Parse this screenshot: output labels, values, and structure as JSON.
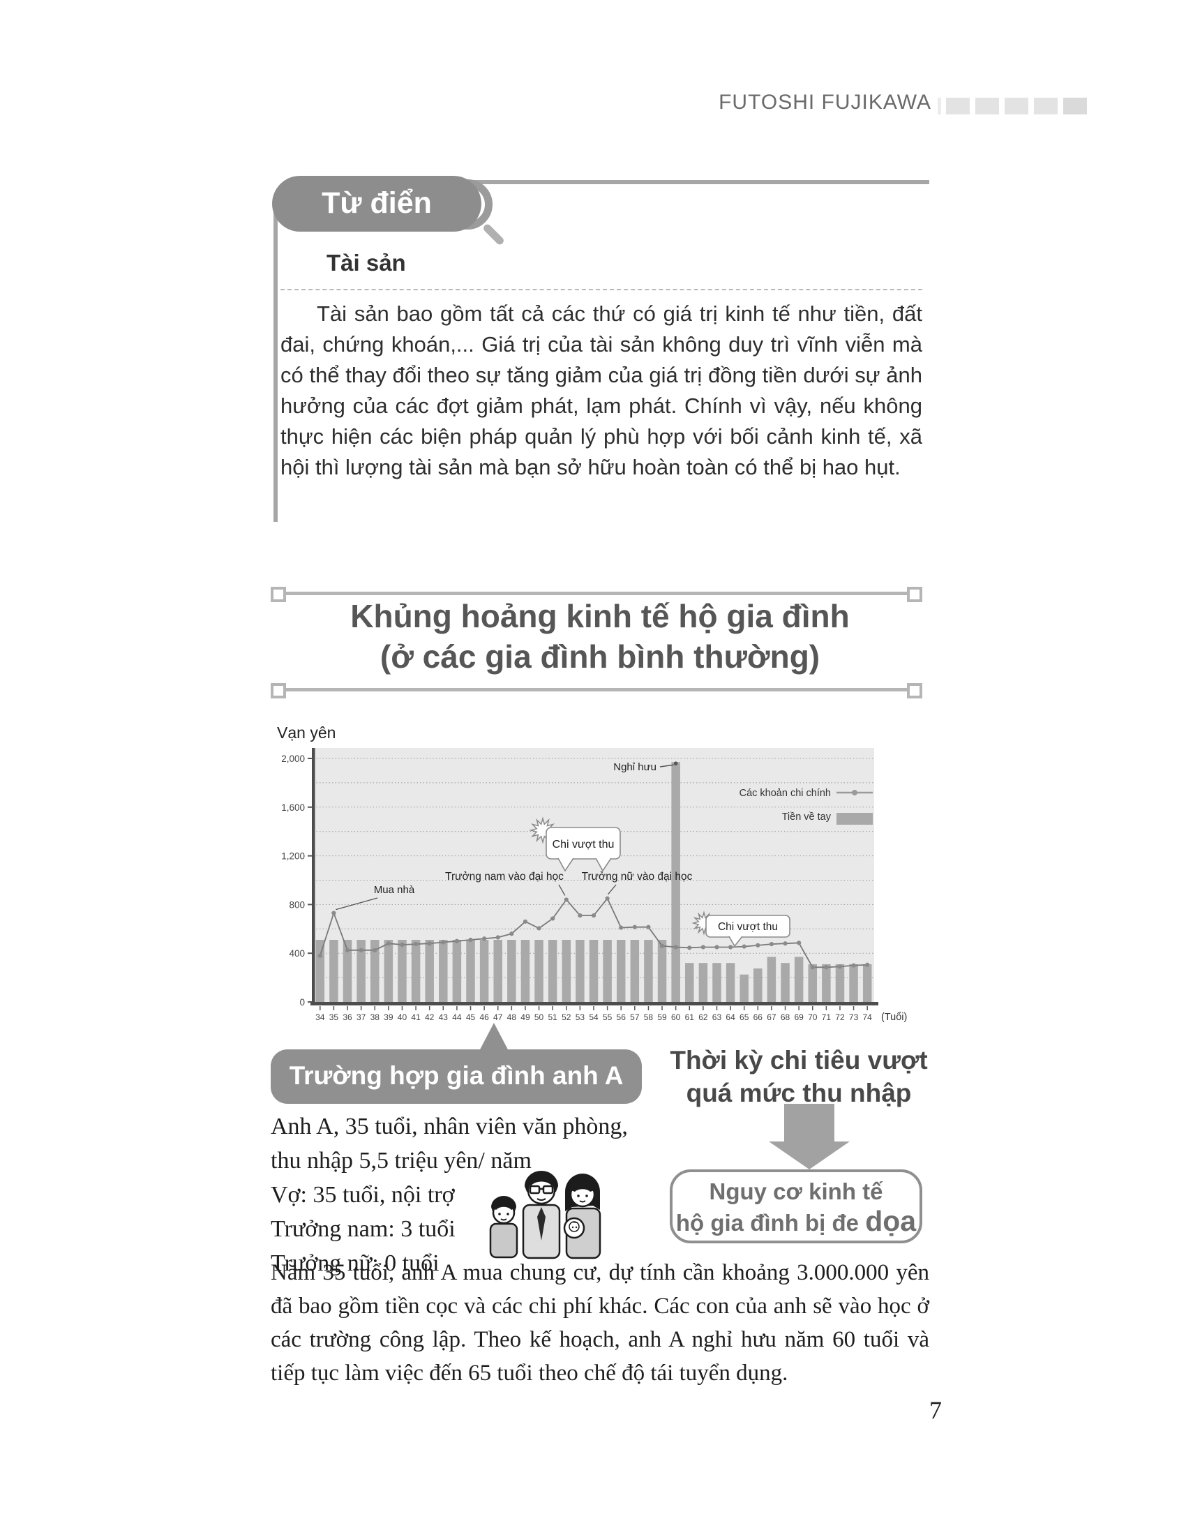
{
  "header": {
    "author": "FUTOSHI FUJIKAWA",
    "squares_count": 5
  },
  "dictionary_box": {
    "title": "Từ điển",
    "icon": "magnifier-icon",
    "term": "Tài sản",
    "body": "Tài sản bao gồm tất cả các thứ có giá trị kinh tế như tiền, đất đai, chứng khoán,... Giá trị của tài sản không duy trì vĩnh viễn mà có thể thay đổi theo sự tăng giảm của giá trị đồng tiền dưới sự ảnh hưởng của các đợt giảm phát, lạm phát. Chính vì vậy, nếu không thực hiện các biện pháp quản lý phù hợp với bối cảnh kinh tế, xã hội thì lượng tài sản mà bạn sở hữu hoàn toàn có thể bị hao hụt."
  },
  "section_title": {
    "line1": "Khủng hoảng kinh tế hộ gia đình",
    "line2": "(ở các gia đình bình thường)"
  },
  "chart_data": {
    "type": "bar",
    "title": "",
    "ylabel": "Vạn yên",
    "xlabel": "(Tuổi)",
    "ylim": [
      0,
      2000
    ],
    "ytick_labels": [
      "0",
      "400",
      "800",
      "1,200",
      "1,600",
      "2,000"
    ],
    "grid_step": 200,
    "legend_position": "top-right",
    "plot_bg": "#e9e9e9",
    "bar_color": "#a9a9a9",
    "line_color": "#7a7a7a",
    "categories": [
      "34",
      "35",
      "36",
      "37",
      "38",
      "39",
      "40",
      "41",
      "42",
      "43",
      "44",
      "45",
      "46",
      "47",
      "48",
      "49",
      "50",
      "51",
      "52",
      "53",
      "54",
      "55",
      "56",
      "57",
      "58",
      "59",
      "60",
      "61",
      "62",
      "63",
      "64",
      "65",
      "66",
      "67",
      "68",
      "69",
      "70",
      "71",
      "72",
      "73",
      "74"
    ],
    "series": [
      {
        "name": "Các khoản chi chính",
        "type": "line",
        "values": [
          380,
          730,
          425,
          425,
          425,
          480,
          470,
          475,
          480,
          490,
          500,
          510,
          520,
          530,
          560,
          660,
          605,
          685,
          840,
          710,
          710,
          850,
          610,
          615,
          615,
          460,
          450,
          445,
          450,
          450,
          450,
          455,
          465,
          475,
          480,
          485,
          285,
          285,
          290,
          300,
          305
        ]
      },
      {
        "name": "Tiền về tay",
        "type": "bar",
        "values": [
          510,
          510,
          510,
          510,
          510,
          510,
          510,
          510,
          510,
          510,
          510,
          510,
          510,
          510,
          510,
          510,
          510,
          510,
          510,
          510,
          510,
          510,
          510,
          510,
          510,
          510,
          1970,
          320,
          320,
          320,
          320,
          225,
          275,
          370,
          320,
          370,
          310,
          310,
          310,
          310,
          310
        ]
      }
    ],
    "annotations": [
      {
        "id": "retirement",
        "text": "Nghỉ hưu",
        "target_age": 60
      },
      {
        "id": "house",
        "text": "Mua nhà",
        "target_age": 35
      },
      {
        "id": "overspend_1",
        "text": "Chi vượt thu",
        "target_age": 52
      },
      {
        "id": "son_university",
        "text": "Trưởng nam vào đại học",
        "target_age": 52
      },
      {
        "id": "daughter_university",
        "text": "Trưởng nữ vào đại học",
        "target_age": 55
      },
      {
        "id": "overspend_2",
        "text": "Chi vượt thu",
        "target_age": 63
      }
    ]
  },
  "case": {
    "badge": "Trường hợp gia đình anh A",
    "details": [
      "Anh A, 35 tuổi, nhân viên văn phòng,",
      "thu nhập 5,5 triệu yên/ năm",
      "Vợ: 35 tuổi, nội trợ",
      "Trưởng nam: 3 tuổi",
      "Trưởng nữ: 0 tuổi"
    ]
  },
  "overspend": {
    "heading_line1": "Thời kỳ chi tiêu vượt",
    "heading_line2": "quá mức thu nhập",
    "risk_line1": "Nguy cơ kinh tế",
    "risk_line2a": "hộ gia đình bị đe ",
    "risk_line2b": "dọa"
  },
  "bottom_paragraph": "Năm 35 tuổi, anh A mua chung cư, dự tính cần khoảng 3.000.000 yên đã bao gồm tiền cọc và các chi phí khác. Các con của anh sẽ vào học ở các trường công lập. Theo kế hoạch, anh A nghỉ hưu năm 60 tuổi và tiếp tục làm việc đến 65 tuổi theo chế độ tái tuyển dụng.",
  "page_number": "7"
}
